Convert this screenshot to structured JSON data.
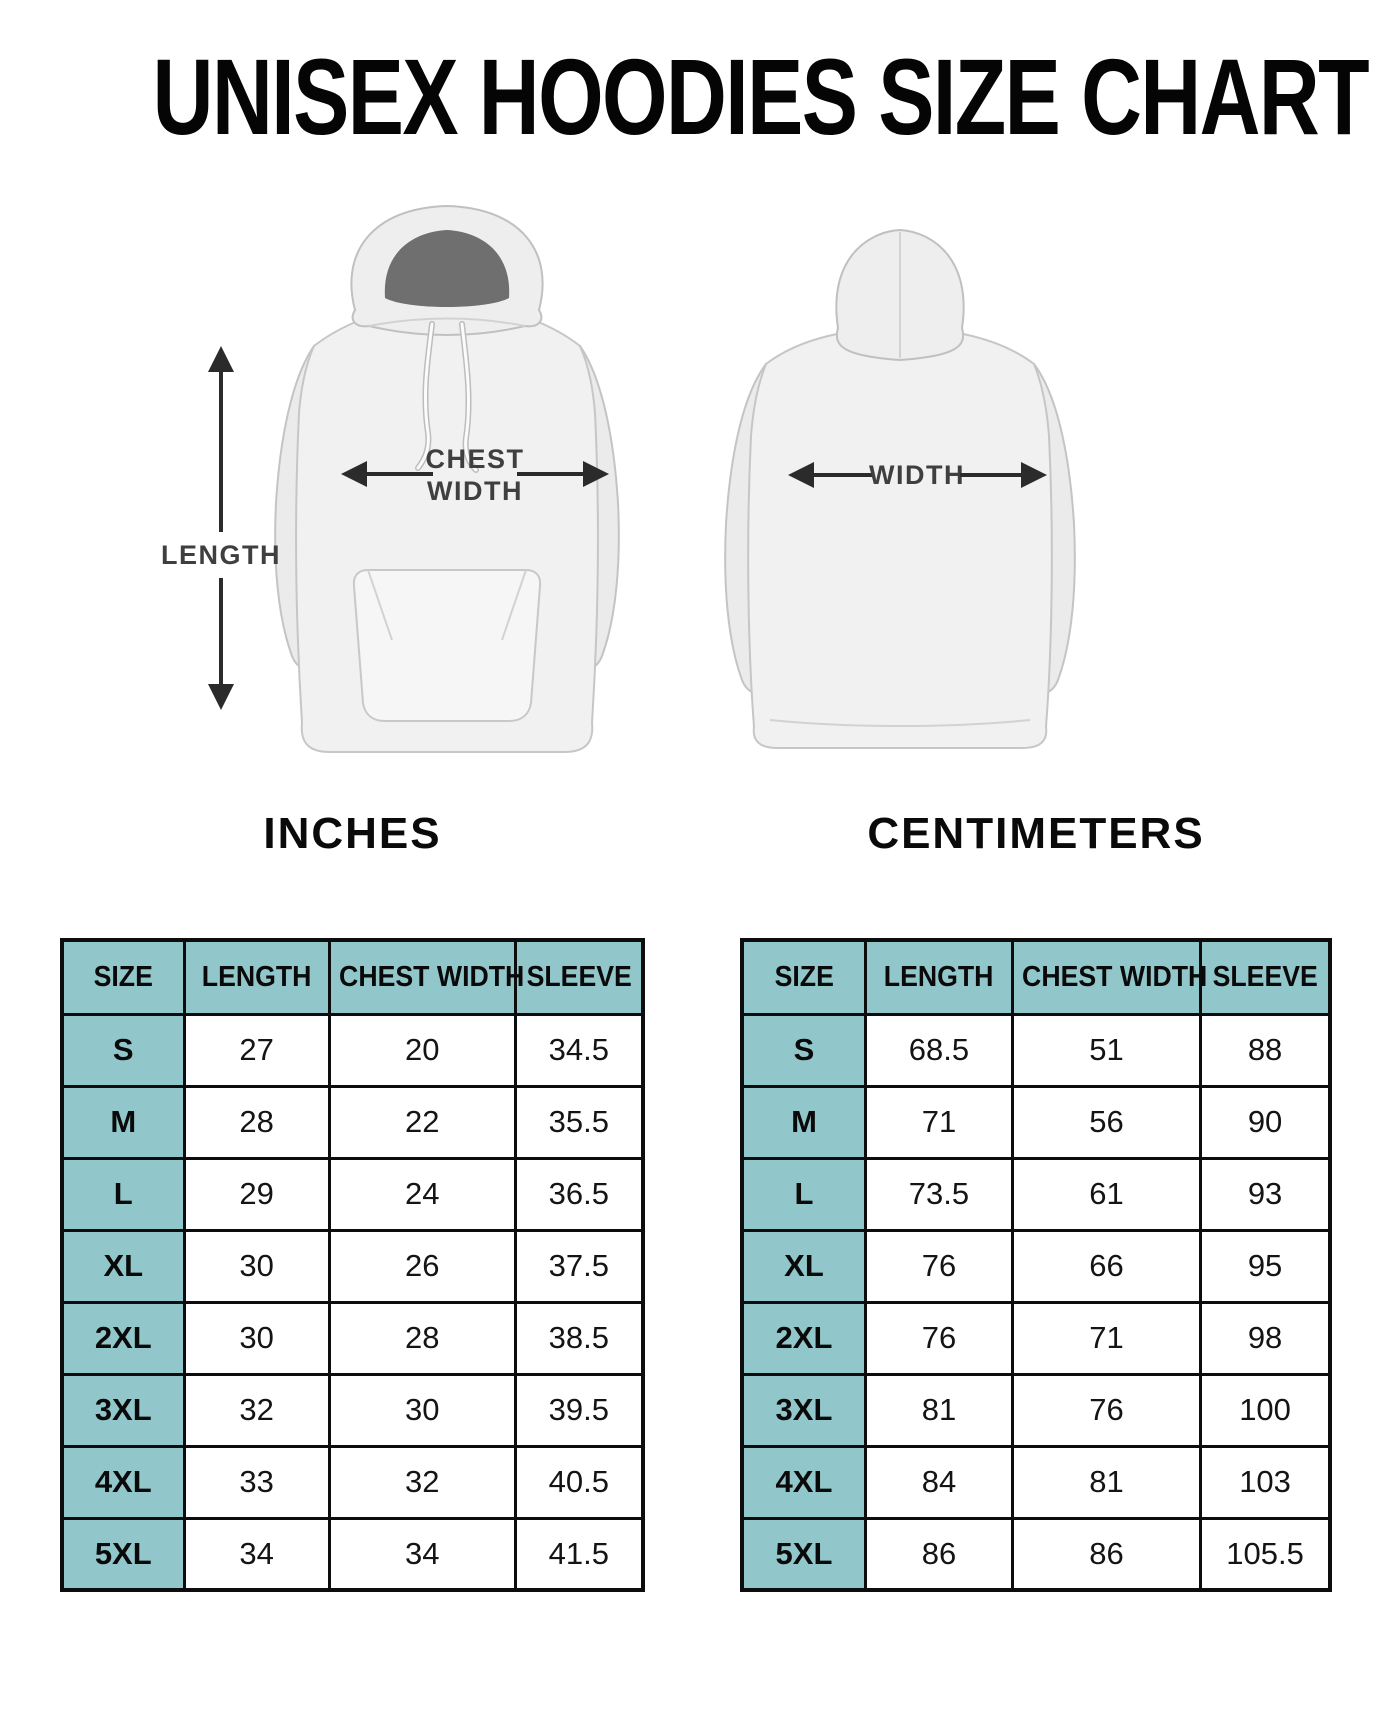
{
  "title": "UNISEX HOODIES SIZE CHART",
  "diagram": {
    "length_label": "LENGTH",
    "chest_label_lines": [
      "CHEST",
      "WIDTH"
    ],
    "back_width_label": "WIDTH"
  },
  "tables": [
    {
      "title": "INCHES",
      "columns": [
        "SIZE",
        "LENGTH",
        "CHEST WIDTH",
        "SLEEVE"
      ],
      "rows": [
        [
          "S",
          "27",
          "20",
          "34.5"
        ],
        [
          "M",
          "28",
          "22",
          "35.5"
        ],
        [
          "L",
          "29",
          "24",
          "36.5"
        ],
        [
          "XL",
          "30",
          "26",
          "37.5"
        ],
        [
          "2XL",
          "30",
          "28",
          "38.5"
        ],
        [
          "3XL",
          "32",
          "30",
          "39.5"
        ],
        [
          "4XL",
          "33",
          "32",
          "40.5"
        ],
        [
          "5XL",
          "34",
          "34",
          "41.5"
        ]
      ]
    },
    {
      "title": "CENTIMETERS",
      "columns": [
        "SIZE",
        "LENGTH",
        "CHEST WIDTH",
        "SLEEVE"
      ],
      "rows": [
        [
          "S",
          "68.5",
          "51",
          "88"
        ],
        [
          "M",
          "71",
          "56",
          "90"
        ],
        [
          "L",
          "73.5",
          "61",
          "93"
        ],
        [
          "XL",
          "76",
          "66",
          "95"
        ],
        [
          "2XL",
          "76",
          "71",
          "98"
        ],
        [
          "3XL",
          "81",
          "76",
          "100"
        ],
        [
          "4XL",
          "84",
          "81",
          "103"
        ],
        [
          "5XL",
          "86",
          "86",
          "105.5"
        ]
      ]
    }
  ],
  "colors": {
    "header_teal": "#91c7ca",
    "table_border": "#0d0d0d",
    "diagram_label_gray": "#3f3f3f"
  }
}
